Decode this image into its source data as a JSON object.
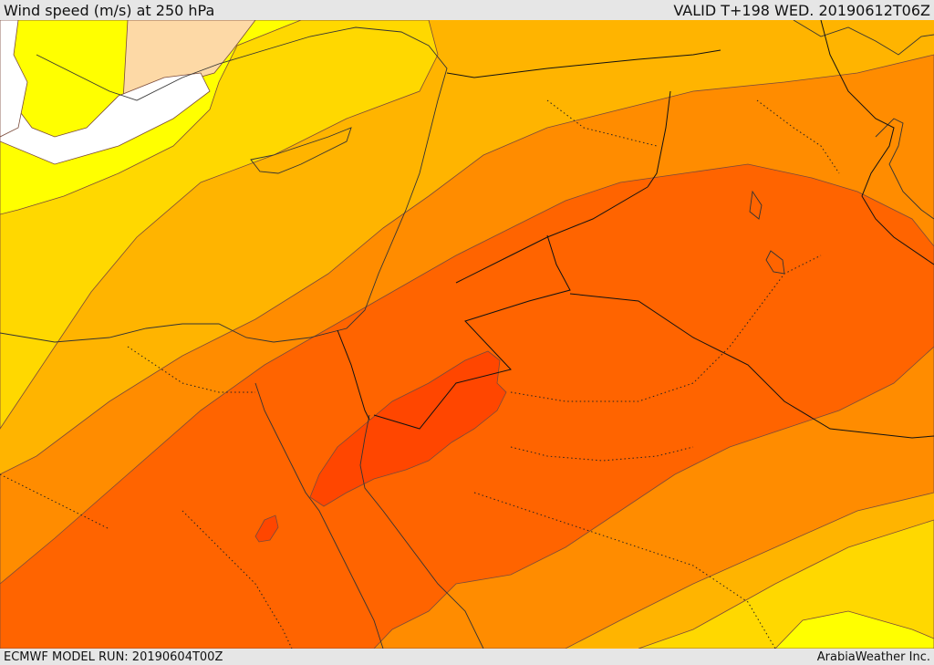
{
  "header": {
    "title": "Wind speed (m/s) at 250 hPa",
    "valid": "VALID T+198 WED. 20190612T06Z"
  },
  "footer": {
    "model_run": "ECMWF MODEL RUN: 20190604T00Z",
    "credit": "ArabiaWeather Inc."
  },
  "colors": {
    "white": "#ffffff",
    "peach": "#fdd9a6",
    "yellow": "#ffff00",
    "gold": "#ffd800",
    "amber": "#ffb400",
    "orange": "#ff8c00",
    "deep_orange": "#ff6400",
    "red_orange": "#ff4600",
    "land_outline": "#333333"
  }
}
